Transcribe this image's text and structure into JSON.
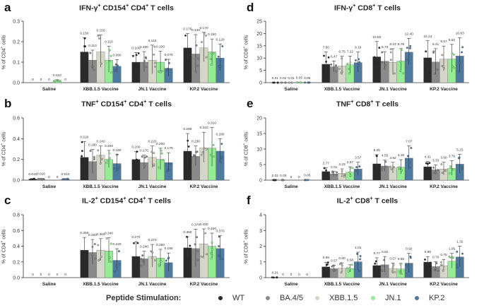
{
  "colors": {
    "WT": "#2a2a2a",
    "BA.4/5": "#8a8a8a",
    "XBB.1.5": "#d6d6c8",
    "JN.1": "#95ec95",
    "KP.2": "#4f7aa0"
  },
  "groups": [
    "Saline",
    "XBB.1.5 Vaccine",
    "JN.1 Vaccine",
    "KP.2 Vaccine"
  ],
  "legend": {
    "title": "Peptide Stimulation:",
    "items": [
      {
        "label": "WT",
        "color": "#2a2a2a"
      },
      {
        "label": "BA.4/5",
        "color": "#8a8a8a"
      },
      {
        "label": "XBB.1.5",
        "color": "#d6d6c8"
      },
      {
        "label": "JN.1",
        "color": "#95ec95"
      },
      {
        "label": "KP.2",
        "color": "#4f7aa0"
      }
    ]
  },
  "chart_data": [
    {
      "letter": "a",
      "type": "bar",
      "title_html": "IFN-γ<sup>+</sup> CD154<sup>+</sup> CD4<sup>+</sup> T cells",
      "ylabel_html": "% of CD4<sup>+</sup> cells",
      "ylim": [
        0,
        0.3
      ],
      "yticks": [
        0,
        0.1,
        0.2,
        0.3
      ],
      "yticklabels": [
        "0.0",
        "0.1",
        "0.2",
        "0.3"
      ],
      "values": [
        [
          0,
          0,
          0,
          0.01,
          0
        ],
        [
          0.15,
          0.11,
          0.15,
          0.11,
          0.08
        ],
        [
          0.1,
          0.1,
          0.11,
          0.1,
          0.07
        ],
        [
          0.17,
          0.14,
          0.17,
          0.15,
          0.12
        ]
      ],
      "labels": [
        [
          "0",
          "0",
          "0",
          "0.010",
          "0"
        ],
        [
          "0.150",
          "0.110",
          "0.150",
          "0.110",
          "0.080"
        ],
        [
          "0.100",
          "0.100",
          "0.110",
          "0.100",
          "0.070"
        ],
        [
          "0.170",
          "0.140",
          "0.170",
          "0.150",
          "0.120"
        ]
      ]
    },
    {
      "letter": "b",
      "type": "bar",
      "title_html": "TNF<sup>+</sup> CD154<sup>+</sup> CD4<sup>+</sup> T cells",
      "ylabel_html": "% of CD4<sup>+</sup> cells",
      "ylim": [
        0,
        0.6
      ],
      "yticks": [
        0,
        0.2,
        0.4,
        0.6
      ],
      "yticklabels": [
        "0.0",
        "0.2",
        "0.4",
        "0.6"
      ],
      "values": [
        [
          0.01,
          0.01,
          0,
          0,
          0.01
        ],
        [
          0.22,
          0.18,
          0.24,
          0.2,
          0.16
        ],
        [
          0.2,
          0.17,
          0.22,
          0.2,
          0.17
        ],
        [
          0.28,
          0.23,
          0.31,
          0.31,
          0.28
        ]
      ],
      "labels": [
        [
          "0.010",
          "0.010",
          "0",
          "0",
          "0.010"
        ],
        [
          "0.220",
          "0.180",
          "0.240",
          "0.200",
          "0.160"
        ],
        [
          "0.200",
          "0.170",
          "0.220",
          "0.200",
          "0.170"
        ],
        [
          "0.280",
          "0.230",
          "0.310",
          "0.310",
          "0.280"
        ]
      ]
    },
    {
      "letter": "c",
      "type": "bar",
      "title_html": "IL-2<sup>+</sup> CD154<sup>+</sup> CD4<sup>+</sup> T cells",
      "ylabel_html": "% of CD4<sup>+</sup> cells",
      "ylim": [
        0,
        0.8
      ],
      "yticks": [
        0,
        0.2,
        0.4,
        0.6,
        0.8
      ],
      "yticklabels": [
        "0.0",
        "0.2",
        "0.4",
        "0.6",
        "0.8"
      ],
      "values": [
        [
          0,
          0,
          0,
          0,
          0
        ],
        [
          0.35,
          0.32,
          0.35,
          0.34,
          0.22
        ],
        [
          0.27,
          0.24,
          0.27,
          0.25,
          0.19
        ],
        [
          0.38,
          0.37,
          0.43,
          0.4,
          0.37
        ]
      ],
      "labels": [
        [
          "0",
          "0",
          "0",
          "0",
          "0"
        ],
        [
          "0.350",
          "0.320",
          "0.350",
          "0.340",
          "0.220"
        ],
        [
          "0.270",
          "0.240",
          "0.270",
          "0.250",
          "0.190"
        ],
        [
          "0.380",
          "0.370",
          "0.430",
          "0.400",
          "0.370"
        ]
      ]
    },
    {
      "letter": "d",
      "type": "bar",
      "title_html": "IFN-γ<sup>+</sup> CD8<sup>+</sup> T cells",
      "ylabel_html": "% of CD8<sup>+</sup> cells",
      "ylim": [
        0,
        25
      ],
      "yticks": [
        0,
        5,
        10,
        15,
        20,
        25
      ],
      "yticklabels": [
        "0",
        "5",
        "10",
        "15",
        "20",
        "25"
      ],
      "values": [
        [
          0.01,
          0.02,
          0.01,
          0.05,
          0.05
        ],
        [
          7.5,
          6.47,
          6.75,
          7.22,
          8.16
        ],
        [
          10.5,
          8.73,
          8.23,
          8.78,
          12.4
        ],
        [
          10.13,
          8.41,
          9.57,
          9.62,
          10.83
        ]
      ],
      "labels": [
        [
          "0.01",
          "0.02",
          "0.01",
          "0.05",
          "0.05"
        ],
        [
          "7.50",
          "6.47",
          "6.75",
          "7.22",
          "8.16"
        ],
        [
          "10.50",
          "8.73",
          "8.23",
          "8.78",
          "12.40"
        ],
        [
          "10.13",
          "8.41",
          "9.57",
          "9.62",
          "10.83"
        ]
      ]
    },
    {
      "letter": "e",
      "type": "bar",
      "title_html": "TNF<sup>+</sup> CD8<sup>+</sup> T cells",
      "ylabel_html": "% of CD8<sup>+</sup> cells",
      "ylim": [
        0,
        20
      ],
      "yticks": [
        0,
        5,
        10,
        15,
        20
      ],
      "yticklabels": [
        "0",
        "5",
        "10",
        "15",
        "20"
      ],
      "values": [
        [
          0.02,
          0.03,
          0,
          0,
          0.05
        ],
        [
          2.77,
          2.01,
          2.23,
          2.57,
          3.57
        ],
        [
          5.25,
          4.55,
          3.92,
          4.18,
          7.07
        ],
        [
          4.31,
          3.33,
          3.6,
          3.79,
          5.15
        ]
      ],
      "labels": [
        [
          "0.02",
          "0.03",
          "0",
          "0",
          "0.05"
        ],
        [
          "2.77",
          "2.01",
          "2.23",
          "2.57",
          "3.57"
        ],
        [
          "5.25",
          "4.55",
          "3.92",
          "4.18",
          "7.07"
        ],
        [
          "4.31",
          "3.33",
          "3.60",
          "3.79",
          "5.15"
        ]
      ]
    },
    {
      "letter": "f",
      "type": "bar",
      "title_html": "IL-2<sup>+</sup> CD8<sup>+</sup> T cells",
      "ylabel_html": "% of CD8<sup>+</sup> cells",
      "ylim": [
        0,
        4
      ],
      "yticks": [
        0,
        1,
        2,
        3,
        4
      ],
      "yticklabels": [
        "0",
        "1",
        "2",
        "3",
        "4"
      ],
      "values": [
        [
          0.01,
          0,
          0,
          0,
          0
        ],
        [
          0.69,
          0.57,
          0.6,
          0.58,
          1.01
        ],
        [
          0.77,
          0.82,
          0.57,
          0.55,
          0.92
        ],
        [
          0.99,
          0.7,
          0.75,
          1.05,
          1.32
        ]
      ],
      "labels": [
        [
          "0.01",
          "0",
          "0",
          "0",
          "0"
        ],
        [
          "0.69",
          "0.57",
          "0.60",
          "0.58",
          "1.01"
        ],
        [
          "0.77",
          "0.82",
          "0.57",
          "0.55",
          "0.92"
        ],
        [
          "0.99",
          "0.70",
          "0.75",
          "1.05",
          "1.32"
        ]
      ]
    }
  ]
}
